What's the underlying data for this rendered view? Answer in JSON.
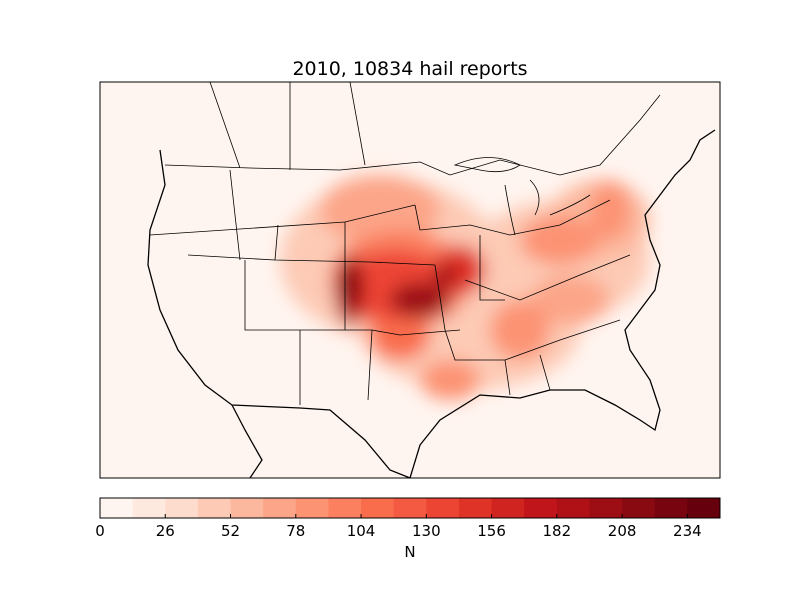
{
  "title": "2010, 10834 hail reports",
  "colorbar": {
    "label": "N",
    "levels": [
      0,
      13,
      26,
      39,
      52,
      65,
      78,
      91,
      104,
      117,
      130,
      143,
      156,
      169,
      182,
      195,
      208,
      221,
      234,
      247
    ],
    "colors": [
      "#fff5f0",
      "#fee9df",
      "#fedccd",
      "#fdcab5",
      "#fcb89e",
      "#fca588",
      "#fc9373",
      "#fb8060",
      "#f96d4d",
      "#f45a41",
      "#ed4534",
      "#e03328",
      "#d02420",
      "#bf151b",
      "#af1117",
      "#9c0d14",
      "#8a0a12",
      "#77040f",
      "#67000d"
    ],
    "ticks": [
      0,
      26,
      52,
      78,
      104,
      130,
      156,
      182,
      208,
      234
    ]
  }
}
